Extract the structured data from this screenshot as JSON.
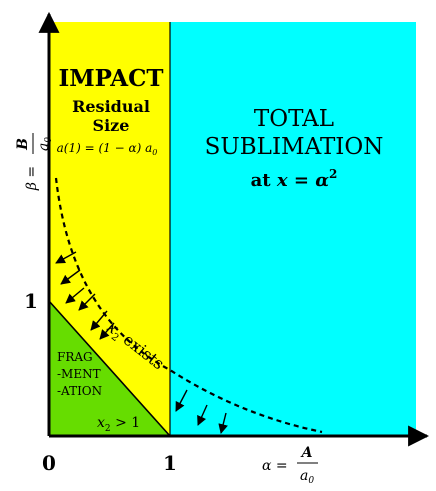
{
  "regions": {
    "impact": {
      "title": "IMPACT",
      "sub1": "Residual",
      "sub2": "Size",
      "formula_lhs": "a(1) = (1 − α) a",
      "formula_sub": "0",
      "color": "#ffff00"
    },
    "sublimation": {
      "title1": "TOTAL",
      "title2": "SUBLIMATION",
      "at_prefix": "at ",
      "at_x": "x",
      "at_eq": " = ",
      "at_alpha": "α",
      "at_exp": "2",
      "color": "#00ffff"
    },
    "fragmentation": {
      "line1": "FRAG",
      "line2": "-MENT",
      "line3": "-ATION",
      "cond_var": "x",
      "cond_sub": "2",
      "cond_rest": " > 1",
      "color": "#66dd00"
    }
  },
  "curve": {
    "var": "x",
    "sub": "2",
    "text": " exists"
  },
  "axes": {
    "x_tick_0": "0",
    "x_tick_1": "1",
    "y_tick_1": "1",
    "x_label": {
      "lhs": "α =",
      "num": "A",
      "den": "a",
      "den_sub": "0"
    },
    "y_label": {
      "lhs": "β =",
      "num": "B",
      "den": "a",
      "den_sub": "0"
    }
  }
}
